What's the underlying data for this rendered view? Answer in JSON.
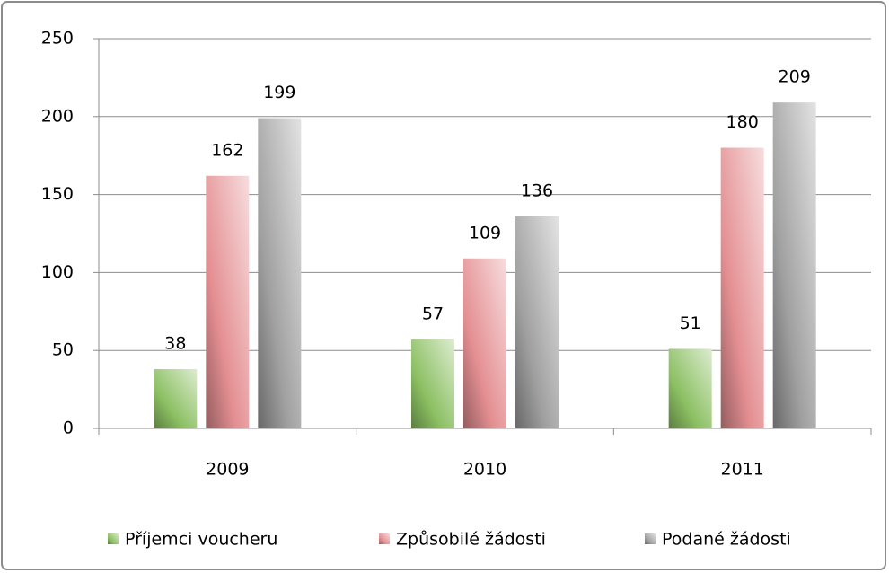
{
  "chart_data": {
    "type": "bar",
    "categories": [
      "2009",
      "2010",
      "2011"
    ],
    "series": [
      {
        "name": "Příjemci voucheru",
        "color": "#8cc063",
        "values": [
          38,
          57,
          51
        ]
      },
      {
        "name": "Způsobilé žádosti",
        "color": "#e48f92",
        "values": [
          162,
          109,
          180
        ]
      },
      {
        "name": "Podané žádosti",
        "color": "#a0a0a0",
        "values": [
          199,
          136,
          209
        ]
      }
    ],
    "ylim": [
      0,
      250
    ],
    "yticks": [
      0,
      50,
      100,
      150,
      200,
      250
    ],
    "grid": true,
    "legend": "bottom"
  }
}
